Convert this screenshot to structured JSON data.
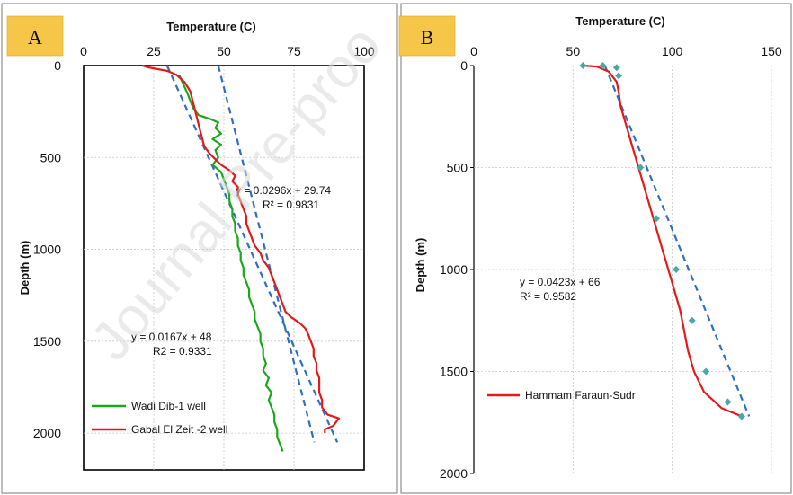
{
  "chart_data": [
    {
      "panel": "A",
      "type": "line",
      "xlabel": "Temperature (C)",
      "ylabel": "Depth (m)",
      "xlim": [
        0,
        100
      ],
      "ylim": [
        0,
        2200
      ],
      "y_inverted": true,
      "x_axis_position": "top",
      "x_ticks": [
        0,
        25,
        50,
        75,
        100
      ],
      "y_ticks": [
        0,
        500,
        1000,
        1500,
        2000
      ],
      "grid": true,
      "legend_position": "bottom-left",
      "series": [
        {
          "name": "Wadi Dib-1 well",
          "color": "#1aa81a",
          "points": [
            [
              34,
              50
            ],
            [
              37,
              150
            ],
            [
              39,
              230
            ],
            [
              41,
              270
            ],
            [
              45,
              290
            ],
            [
              48,
              310
            ],
            [
              47,
              340
            ],
            [
              49,
              370
            ],
            [
              46,
              400
            ],
            [
              49,
              430
            ],
            [
              47,
              460
            ],
            [
              48,
              500
            ],
            [
              46,
              540
            ],
            [
              49,
              580
            ],
            [
              50,
              620
            ],
            [
              51,
              660
            ],
            [
              52,
              700
            ],
            [
              52,
              740
            ],
            [
              53,
              780
            ],
            [
              53,
              820
            ],
            [
              54,
              860
            ],
            [
              54,
              900
            ],
            [
              55,
              940
            ],
            [
              55,
              980
            ],
            [
              56,
              1020
            ],
            [
              56,
              1060
            ],
            [
              57,
              1100
            ],
            [
              57,
              1140
            ],
            [
              58,
              1180
            ],
            [
              59,
              1220
            ],
            [
              59,
              1260
            ],
            [
              60,
              1300
            ],
            [
              61,
              1340
            ],
            [
              61,
              1380
            ],
            [
              62,
              1420
            ],
            [
              63,
              1460
            ],
            [
              63,
              1500
            ],
            [
              64,
              1540
            ],
            [
              64,
              1580
            ],
            [
              65,
              1620
            ],
            [
              64,
              1660
            ],
            [
              66,
              1700
            ],
            [
              65,
              1740
            ],
            [
              67,
              1780
            ],
            [
              66,
              1820
            ],
            [
              67,
              1860
            ],
            [
              68,
              1900
            ],
            [
              68,
              1940
            ],
            [
              69,
              1980
            ],
            [
              69,
              2020
            ],
            [
              70,
              2060
            ],
            [
              71,
              2100
            ]
          ]
        },
        {
          "name": "Gabal El Zeit -2 well",
          "color": "#e41a1a",
          "points": [
            [
              21,
              0
            ],
            [
              23,
              10
            ],
            [
              30,
              30
            ],
            [
              33,
              50
            ],
            [
              36,
              90
            ],
            [
              38,
              140
            ],
            [
              39,
              200
            ],
            [
              40,
              260
            ],
            [
              41,
              320
            ],
            [
              42,
              380
            ],
            [
              43,
              440
            ],
            [
              45,
              480
            ],
            [
              47,
              510
            ],
            [
              49,
              540
            ],
            [
              52,
              570
            ],
            [
              54,
              600
            ],
            [
              53,
              630
            ],
            [
              55,
              660
            ],
            [
              55,
              700
            ],
            [
              56,
              740
            ],
            [
              57,
              780
            ],
            [
              58,
              820
            ],
            [
              58,
              860
            ],
            [
              59,
              900
            ],
            [
              60,
              940
            ],
            [
              61,
              980
            ],
            [
              63,
              1020
            ],
            [
              64,
              1060
            ],
            [
              66,
              1100
            ],
            [
              67,
              1140
            ],
            [
              68,
              1180
            ],
            [
              69,
              1220
            ],
            [
              70,
              1260
            ],
            [
              71,
              1300
            ],
            [
              72,
              1340
            ],
            [
              74,
              1370
            ],
            [
              77,
              1400
            ],
            [
              79,
              1430
            ],
            [
              80,
              1460
            ],
            [
              81,
              1500
            ],
            [
              82,
              1540
            ],
            [
              82,
              1580
            ],
            [
              83,
              1620
            ],
            [
              83,
              1660
            ],
            [
              84,
              1700
            ],
            [
              84,
              1740
            ],
            [
              84,
              1780
            ],
            [
              85,
              1820
            ],
            [
              85,
              1860
            ],
            [
              87,
              1900
            ],
            [
              91,
              1920
            ],
            [
              89,
              1960
            ],
            [
              86,
              1980
            ],
            [
              86,
              2000
            ]
          ]
        }
      ],
      "trendlines": [
        {
          "color": "#2f6fbf",
          "equation": "y = 0.0296x + 29.74",
          "r2": "R² = 0.9831",
          "slope": 0.0296,
          "intercept": 29.74,
          "depth_range": [
            0,
            2050
          ]
        },
        {
          "color": "#2f6fbf",
          "equation": "y = 0.0167x + 48",
          "r2": "R2 = 0.9331",
          "slope": 0.0167,
          "intercept": 48,
          "depth_range": [
            0,
            2050
          ]
        }
      ]
    },
    {
      "panel": "B",
      "type": "line",
      "xlabel": "Temperature (C)",
      "ylabel": "Depth (m)",
      "xlim": [
        0,
        150
      ],
      "ylim": [
        0,
        2000
      ],
      "y_inverted": true,
      "x_axis_position": "top",
      "x_ticks": [
        0,
        50,
        100,
        150
      ],
      "y_ticks": [
        0,
        500,
        1000,
        1500,
        2000
      ],
      "grid": true,
      "legend_position": "bottom-left",
      "series": [
        {
          "name": "Hammam Faraun-Sudr",
          "color": "#e41a1a",
          "points": [
            [
              55,
              0
            ],
            [
              62,
              5
            ],
            [
              68,
              30
            ],
            [
              72,
              80
            ],
            [
              73,
              130
            ],
            [
              74,
              200
            ],
            [
              77,
              300
            ],
            [
              80,
              400
            ],
            [
              83,
              500
            ],
            [
              86,
              600
            ],
            [
              89,
              700
            ],
            [
              92,
              800
            ],
            [
              95,
              900
            ],
            [
              98,
              1000
            ],
            [
              101,
              1100
            ],
            [
              104,
              1200
            ],
            [
              106,
              1300
            ],
            [
              108,
              1400
            ],
            [
              111,
              1500
            ],
            [
              116,
              1600
            ],
            [
              125,
              1680
            ],
            [
              135,
              1720
            ]
          ]
        }
      ],
      "markers": {
        "color": "#4aa8a8",
        "points": [
          [
            55,
            0
          ],
          [
            65,
            0
          ],
          [
            72,
            10
          ],
          [
            73,
            50
          ],
          [
            84,
            500
          ],
          [
            92,
            750
          ],
          [
            102,
            1000
          ],
          [
            110,
            1250
          ],
          [
            117,
            1500
          ],
          [
            128,
            1650
          ],
          [
            135,
            1720
          ]
        ]
      },
      "trendlines": [
        {
          "color": "#2f6fbf",
          "equation": "y = 0.0423x + 66",
          "r2": "R² = 0.9582",
          "slope": 0.0423,
          "intercept": 66,
          "depth_range": [
            0,
            1720
          ]
        }
      ]
    }
  ],
  "panels": {
    "a": {
      "badge": "A",
      "x_title": "Temperature (C)",
      "y_title": "Depth (m)"
    },
    "b": {
      "badge": "B",
      "x_title": "Temperature (C)",
      "y_title": "Depth (m)"
    }
  },
  "watermark": "Journal Pre-proo"
}
